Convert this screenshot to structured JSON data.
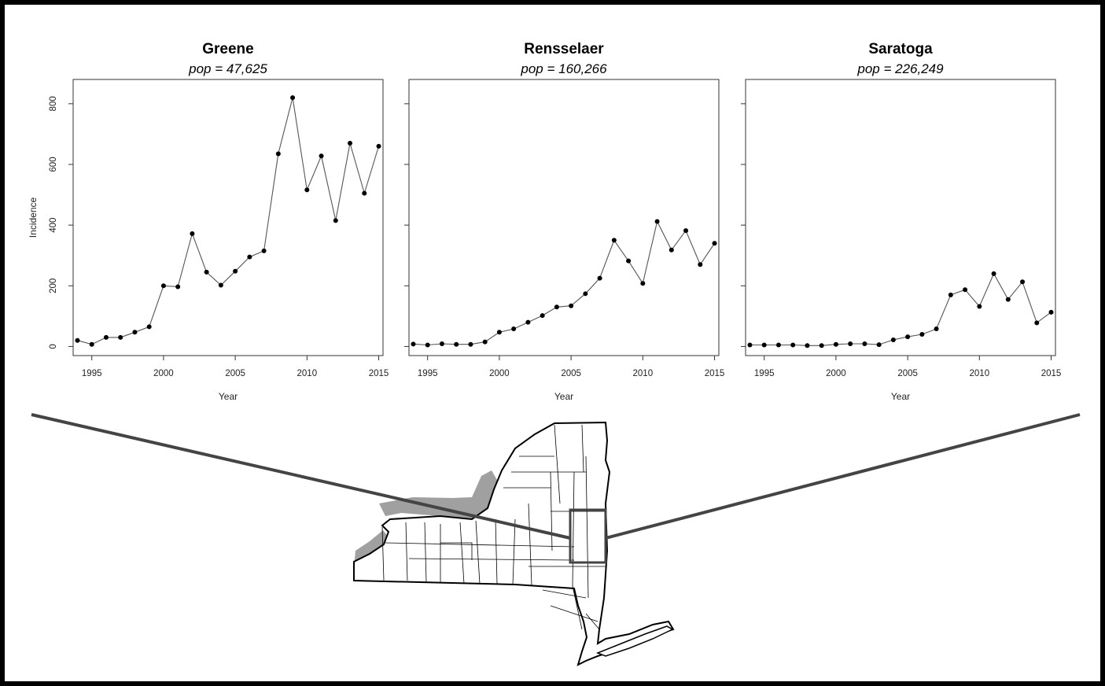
{
  "chart_data": [
    {
      "type": "line",
      "title": "Greene",
      "subtitle": "pop = 47,625",
      "xlabel": "Year",
      "ylabel": "Incidence",
      "x": [
        1994,
        1995,
        1996,
        1997,
        1998,
        1999,
        2000,
        2001,
        2002,
        2003,
        2004,
        2005,
        2006,
        2007,
        2008,
        2009,
        2010,
        2011,
        2012,
        2013,
        2014,
        2015
      ],
      "values": [
        20,
        7,
        30,
        30,
        47,
        65,
        200,
        197,
        372,
        245,
        202,
        248,
        295,
        315,
        635,
        820,
        516,
        628,
        415,
        670,
        505,
        660
      ],
      "xlim": [
        1993.7,
        2015.3
      ],
      "ylim": [
        -30,
        880
      ],
      "x_ticks": [
        1995,
        2000,
        2005,
        2010,
        2015
      ],
      "x_tick_labels": [
        "1995",
        "2000",
        "2005",
        "2010",
        "2015"
      ],
      "y_ticks": [
        0,
        200,
        400,
        600,
        800
      ],
      "y_tick_labels": [
        "0",
        "200",
        "400",
        "600",
        "800"
      ],
      "color": "#000000",
      "grid": false
    },
    {
      "type": "line",
      "title": "Rensselaer",
      "subtitle": "pop = 160,266",
      "xlabel": "Year",
      "ylabel": "",
      "x": [
        1994,
        1995,
        1996,
        1997,
        1998,
        1999,
        2000,
        2001,
        2002,
        2003,
        2004,
        2005,
        2006,
        2007,
        2008,
        2009,
        2010,
        2011,
        2012,
        2013,
        2014,
        2015
      ],
      "values": [
        8,
        5,
        9,
        7,
        7,
        15,
        47,
        58,
        80,
        102,
        130,
        134,
        174,
        225,
        350,
        282,
        208,
        412,
        318,
        382,
        270,
        340
      ],
      "xlim": [
        1993.7,
        2015.3
      ],
      "ylim": [
        -30,
        880
      ],
      "x_ticks": [
        1995,
        2000,
        2005,
        2010,
        2015
      ],
      "x_tick_labels": [
        "1995",
        "2000",
        "2005",
        "2010",
        "2015"
      ],
      "y_ticks": [
        0,
        200,
        400,
        600,
        800
      ],
      "color": "#000000",
      "grid": false
    },
    {
      "type": "line",
      "title": "Saratoga",
      "subtitle": "pop = 226,249",
      "xlabel": "Year",
      "ylabel": "",
      "x": [
        1994,
        1995,
        1996,
        1997,
        1998,
        1999,
        2000,
        2001,
        2002,
        2003,
        2004,
        2005,
        2006,
        2007,
        2008,
        2009,
        2010,
        2011,
        2012,
        2013,
        2014,
        2015
      ],
      "values": [
        5,
        5,
        5,
        5,
        3,
        3,
        7,
        9,
        9,
        6,
        22,
        32,
        40,
        58,
        170,
        187,
        132,
        240,
        155,
        213,
        78,
        113
      ],
      "xlim": [
        1993.7,
        2015.3
      ],
      "ylim": [
        -30,
        880
      ],
      "x_ticks": [
        1995,
        2000,
        2005,
        2010,
        2015
      ],
      "x_tick_labels": [
        "1995",
        "2000",
        "2005",
        "2010",
        "2015"
      ],
      "y_ticks": [
        0,
        200,
        400,
        600,
        800
      ],
      "color": "#000000",
      "grid": false
    }
  ],
  "map": {
    "description_label": "New York State county map",
    "highlight_box": "Greene, Rensselaer, Saratoga region",
    "outline_color": "#000000",
    "water_color": "#a0a0a0",
    "connector_color": "#444444"
  }
}
